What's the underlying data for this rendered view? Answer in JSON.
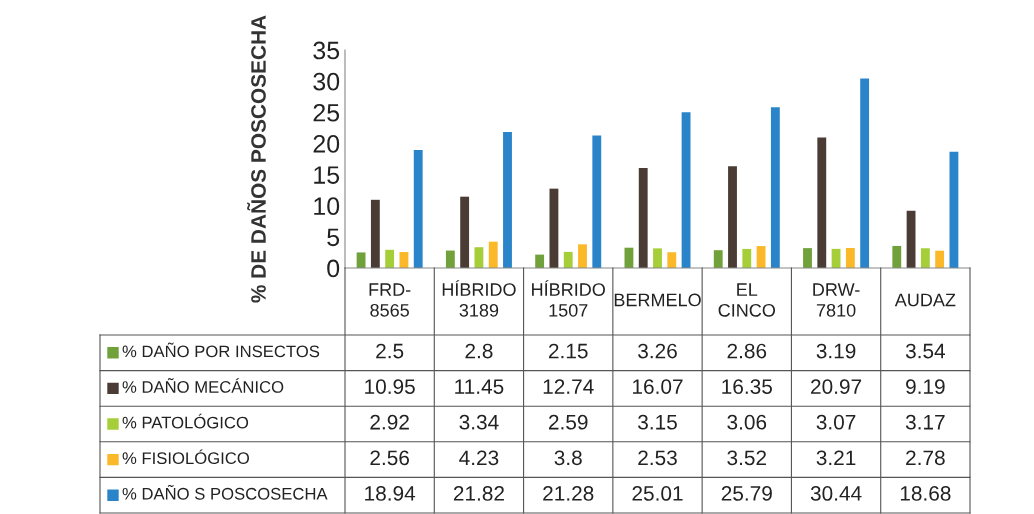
{
  "chart_data": {
    "type": "bar",
    "ylabel": "% DE DAÑOS POSCOSECHA",
    "categories": [
      "FRD-8565",
      "HÍBRIDO 3189",
      "HÍBRIDO 1507",
      "BERMELO",
      "EL CINCO",
      "DRW-7810",
      "AUDAZ"
    ],
    "series": [
      {
        "name": "% DAÑO POR INSECTOS",
        "color": "#70a13a",
        "values": [
          2.5,
          2.8,
          2.15,
          3.26,
          2.86,
          3.19,
          3.54
        ]
      },
      {
        "name": "% DAÑO MECÁNICO",
        "color": "#4a3c34",
        "values": [
          10.95,
          11.45,
          12.74,
          16.07,
          16.35,
          20.97,
          9.19
        ]
      },
      {
        "name": "% PATOLÓGICO",
        "color": "#a6ce39",
        "values": [
          2.92,
          3.34,
          2.59,
          3.15,
          3.06,
          3.07,
          3.17
        ]
      },
      {
        "name": "% FISIOLÓGICO",
        "color": "#fbb829",
        "values": [
          2.56,
          4.23,
          3.8,
          2.53,
          3.52,
          3.21,
          2.78
        ]
      },
      {
        "name": "% DAÑO S POSCOSECHA",
        "color": "#2a84c9",
        "values": [
          18.94,
          21.82,
          21.28,
          25.01,
          25.79,
          30.44,
          18.68
        ]
      }
    ],
    "ylim": [
      0,
      35
    ],
    "yticks": [
      0,
      5,
      10,
      15,
      20,
      25,
      30,
      35
    ],
    "grid": false,
    "data_labels": true,
    "legend": "bottom"
  }
}
